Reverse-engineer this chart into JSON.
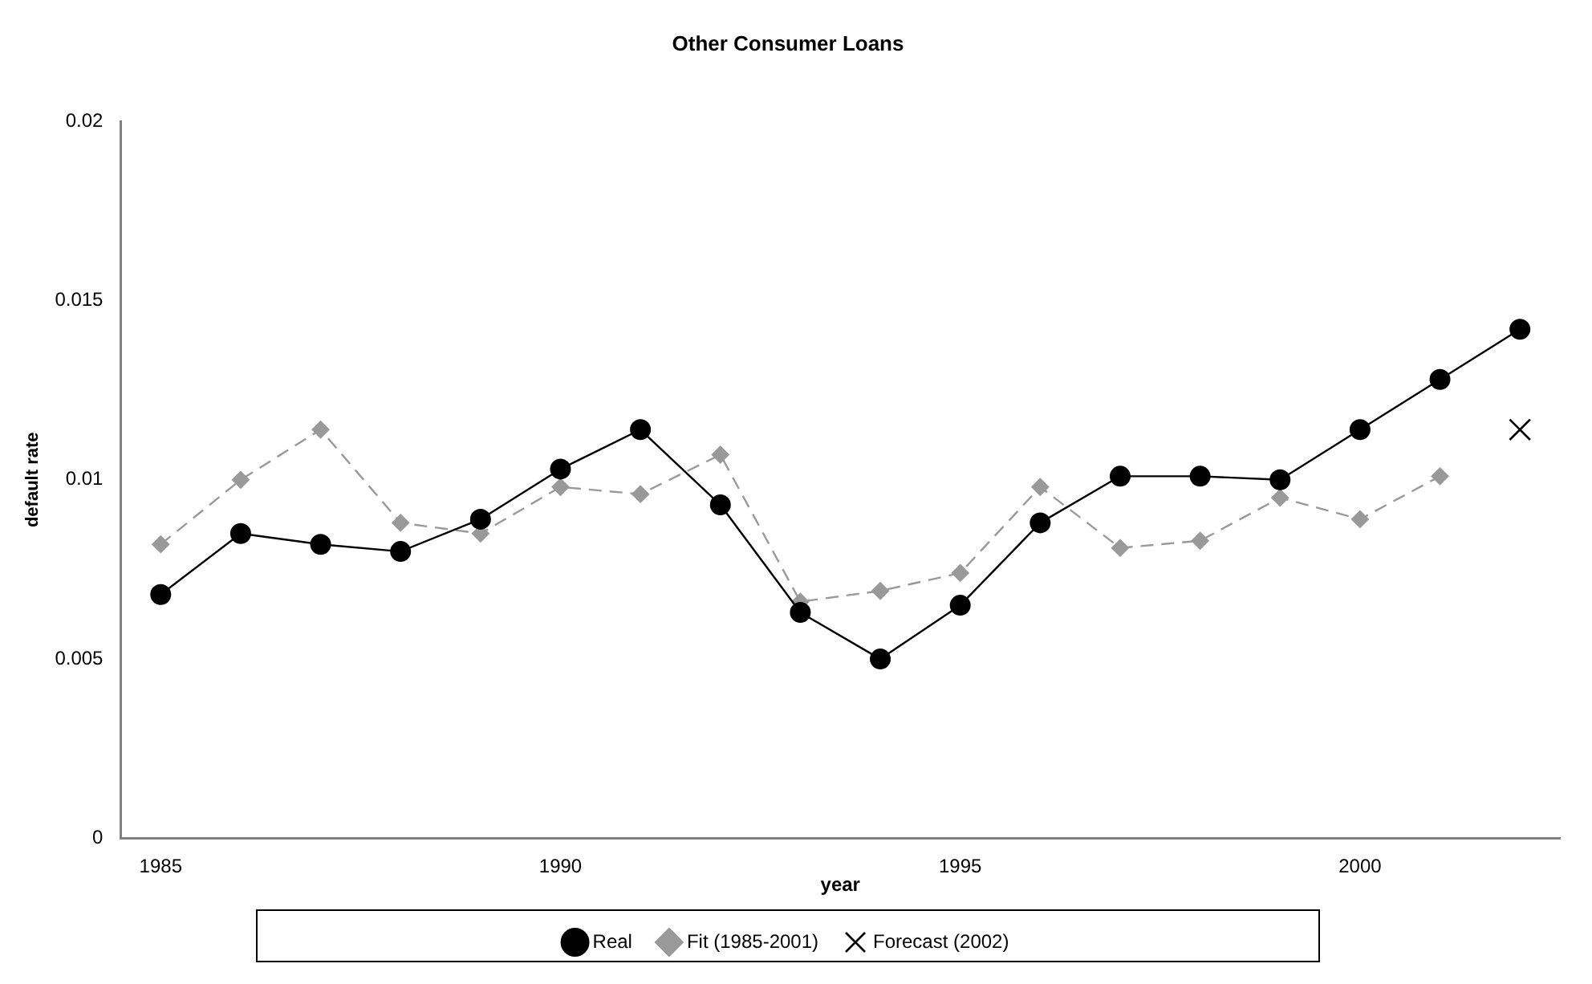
{
  "chart_data": {
    "type": "line",
    "title": "Other Consumer Loans",
    "xlabel": "year",
    "ylabel": "default rate",
    "categories": [
      "1985",
      null,
      null,
      null,
      null,
      "1990",
      null,
      null,
      null,
      null,
      "1995",
      null,
      null,
      null,
      null,
      "2000",
      null,
      null
    ],
    "ylim": [
      0,
      0.02
    ],
    "yticks": [
      0,
      0.005,
      0.01,
      0.015,
      0.02
    ],
    "grid": false,
    "legend": "bottom",
    "series": [
      {
        "name": "Real",
        "color": "#000000",
        "marker": "circle",
        "line_style": "solid",
        "values": [
          0.0068,
          0.0085,
          0.0082,
          0.008,
          0.0089,
          0.0103,
          0.0114,
          0.0093,
          0.0063,
          0.005,
          0.0065,
          0.0088,
          0.0101,
          0.0101,
          0.01,
          0.0114,
          0.0128,
          0.0142
        ]
      },
      {
        "name": "Fit (1985-2001)",
        "color": "#999999",
        "marker": "diamond",
        "line_style": "dashed",
        "values": [
          0.0082,
          0.01,
          0.0114,
          0.0088,
          0.0085,
          0.0098,
          0.0096,
          0.0107,
          0.0066,
          0.0069,
          0.0074,
          0.0098,
          0.0081,
          0.0083,
          0.0095,
          0.0089,
          0.0101,
          null
        ]
      },
      {
        "name": "Forecast (2002)",
        "type": "scatter",
        "color": "#000000",
        "marker": "cross",
        "values": [
          null,
          null,
          null,
          null,
          null,
          null,
          null,
          null,
          null,
          null,
          null,
          null,
          null,
          null,
          null,
          null,
          null,
          0.0114
        ]
      }
    ]
  }
}
